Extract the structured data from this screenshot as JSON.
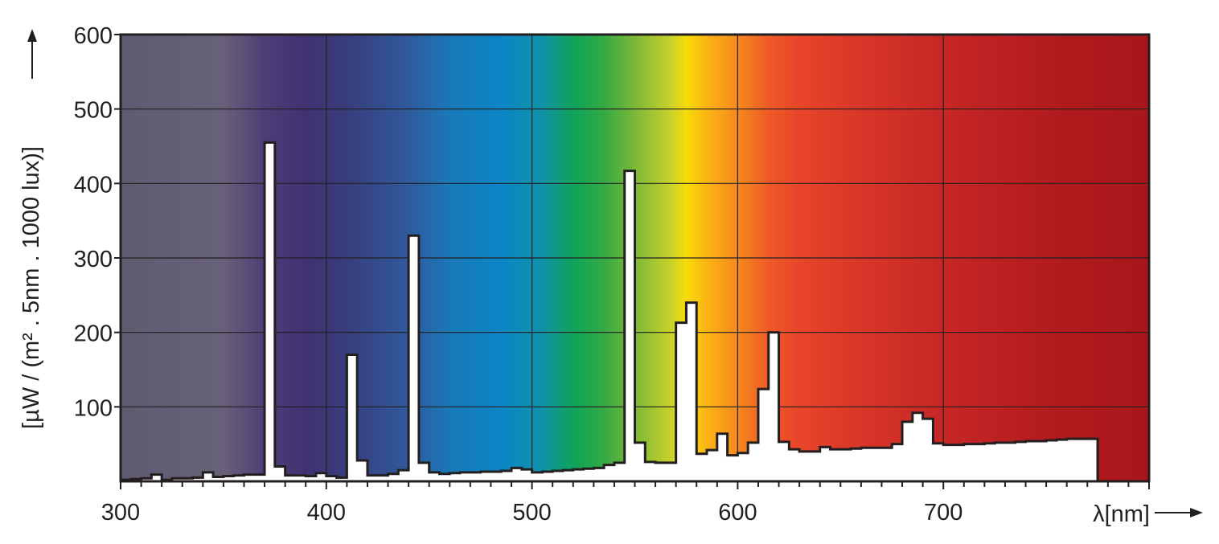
{
  "chart_data": {
    "type": "area",
    "xlabel": "λ[nm]",
    "ylabel": "[µW / (m² . 5nm . 1000 lux)]",
    "xlim": [
      300,
      800
    ],
    "ylim": [
      0,
      600
    ],
    "x_ticks": [
      300,
      400,
      500,
      600,
      700
    ],
    "y_ticks": [
      100,
      200,
      300,
      400,
      500,
      600
    ],
    "x_tick_labels": [
      "300",
      "400",
      "500",
      "600",
      "700"
    ],
    "y_tick_labels": [
      "100",
      "200",
      "300",
      "400",
      "500",
      "600"
    ],
    "grid": true,
    "background": "visible spectrum gradient (violet to deep red)",
    "fill_color": "#ffffff",
    "line_color": "#231f20",
    "bin_width_nm": 5,
    "series": [
      {
        "start_nm": 300,
        "values": [
          2,
          3,
          4,
          9,
          2,
          4,
          4,
          5,
          12,
          6,
          7,
          8,
          9,
          9,
          455,
          20,
          8,
          8,
          7,
          11,
          7,
          5,
          170,
          28,
          8,
          8,
          10,
          15,
          330,
          25,
          12,
          10,
          11,
          12,
          12,
          13,
          13,
          14,
          18,
          16,
          12,
          13,
          14,
          15,
          16,
          17,
          18,
          22,
          25,
          417,
          52,
          26,
          25,
          25,
          213,
          240,
          37,
          42,
          64,
          35,
          38,
          52,
          124,
          200,
          53,
          43,
          40,
          40,
          46,
          43,
          43,
          44,
          45,
          45,
          45,
          50,
          80,
          92,
          84,
          51,
          49,
          49,
          50,
          50,
          51,
          52,
          52,
          53,
          54,
          54,
          55,
          56,
          57,
          57,
          57,
          0,
          0,
          0,
          0,
          0
        ]
      }
    ]
  }
}
